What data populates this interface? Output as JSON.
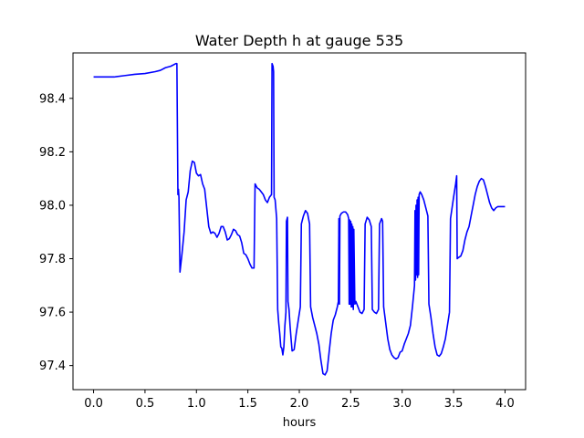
{
  "chart_data": {
    "type": "line",
    "title": "Water Depth h at gauge 535",
    "xlabel": "hours",
    "ylabel": "",
    "xlim": [
      -0.2,
      4.2
    ],
    "ylim": [
      97.31,
      98.57
    ],
    "xticks": [
      0.0,
      0.5,
      1.0,
      1.5,
      2.0,
      2.5,
      3.0,
      3.5,
      4.0
    ],
    "xtick_labels": [
      "0.0",
      "0.5",
      "1.0",
      "1.5",
      "2.0",
      "2.5",
      "3.0",
      "3.5",
      "4.0"
    ],
    "yticks": [
      97.4,
      97.6,
      97.8,
      98.0,
      98.2,
      98.4
    ],
    "ytick_labels": [
      "97.4",
      "97.6",
      "97.8",
      "98.0",
      "98.2",
      "98.4"
    ],
    "grid": false,
    "series": [
      {
        "name": "",
        "color": "#0000ff",
        "points": [
          [
            0.0,
            98.48
          ],
          [
            0.1,
            98.48
          ],
          [
            0.2,
            98.48
          ],
          [
            0.3,
            98.485
          ],
          [
            0.4,
            98.49
          ],
          [
            0.5,
            98.493
          ],
          [
            0.6,
            98.5
          ],
          [
            0.65,
            98.505
          ],
          [
            0.7,
            98.515
          ],
          [
            0.75,
            98.52
          ],
          [
            0.8,
            98.53
          ],
          [
            0.81,
            98.53
          ],
          [
            0.82,
            98.04
          ],
          [
            0.825,
            98.06
          ],
          [
            0.83,
            98.03
          ],
          [
            0.84,
            97.75
          ],
          [
            0.86,
            97.82
          ],
          [
            0.88,
            97.9
          ],
          [
            0.9,
            98.02
          ],
          [
            0.92,
            98.05
          ],
          [
            0.94,
            98.13
          ],
          [
            0.96,
            98.165
          ],
          [
            0.98,
            98.16
          ],
          [
            1.0,
            98.12
          ],
          [
            1.02,
            98.11
          ],
          [
            1.04,
            98.115
          ],
          [
            1.06,
            98.08
          ],
          [
            1.08,
            98.06
          ],
          [
            1.1,
            97.99
          ],
          [
            1.12,
            97.92
          ],
          [
            1.14,
            97.895
          ],
          [
            1.16,
            97.9
          ],
          [
            1.18,
            97.895
          ],
          [
            1.2,
            97.88
          ],
          [
            1.22,
            97.895
          ],
          [
            1.24,
            97.92
          ],
          [
            1.26,
            97.92
          ],
          [
            1.28,
            97.9
          ],
          [
            1.3,
            97.87
          ],
          [
            1.32,
            97.875
          ],
          [
            1.34,
            97.89
          ],
          [
            1.36,
            97.91
          ],
          [
            1.38,
            97.905
          ],
          [
            1.4,
            97.89
          ],
          [
            1.42,
            97.885
          ],
          [
            1.44,
            97.86
          ],
          [
            1.46,
            97.82
          ],
          [
            1.48,
            97.815
          ],
          [
            1.5,
            97.8
          ],
          [
            1.52,
            97.78
          ],
          [
            1.54,
            97.765
          ],
          [
            1.56,
            97.765
          ],
          [
            1.57,
            98.08
          ],
          [
            1.59,
            98.065
          ],
          [
            1.61,
            98.06
          ],
          [
            1.63,
            98.05
          ],
          [
            1.65,
            98.04
          ],
          [
            1.67,
            98.02
          ],
          [
            1.69,
            98.01
          ],
          [
            1.71,
            98.03
          ],
          [
            1.73,
            98.04
          ],
          [
            1.735,
            98.53
          ],
          [
            1.745,
            98.52
          ],
          [
            1.75,
            98.5
          ],
          [
            1.755,
            98.03
          ],
          [
            1.765,
            98.02
          ],
          [
            1.78,
            97.95
          ],
          [
            1.79,
            97.61
          ],
          [
            1.8,
            97.56
          ],
          [
            1.81,
            97.52
          ],
          [
            1.82,
            97.47
          ],
          [
            1.83,
            97.465
          ],
          [
            1.84,
            97.44
          ],
          [
            1.85,
            97.47
          ],
          [
            1.86,
            97.55
          ],
          [
            1.87,
            97.6
          ],
          [
            1.875,
            97.94
          ],
          [
            1.885,
            97.955
          ],
          [
            1.89,
            97.64
          ],
          [
            1.9,
            97.61
          ],
          [
            1.91,
            97.55
          ],
          [
            1.92,
            97.5
          ],
          [
            1.93,
            97.455
          ],
          [
            1.95,
            97.46
          ],
          [
            1.97,
            97.52
          ],
          [
            1.99,
            97.57
          ],
          [
            2.01,
            97.62
          ],
          [
            2.02,
            97.93
          ],
          [
            2.04,
            97.96
          ],
          [
            2.06,
            97.98
          ],
          [
            2.08,
            97.97
          ],
          [
            2.1,
            97.93
          ],
          [
            2.11,
            97.62
          ],
          [
            2.13,
            97.58
          ],
          [
            2.15,
            97.55
          ],
          [
            2.17,
            97.52
          ],
          [
            2.19,
            97.48
          ],
          [
            2.21,
            97.42
          ],
          [
            2.23,
            97.37
          ],
          [
            2.25,
            97.365
          ],
          [
            2.27,
            97.38
          ],
          [
            2.29,
            97.45
          ],
          [
            2.31,
            97.52
          ],
          [
            2.33,
            97.57
          ],
          [
            2.35,
            97.59
          ],
          [
            2.37,
            97.62
          ],
          [
            2.38,
            97.64
          ],
          [
            2.385,
            97.95
          ],
          [
            2.39,
            97.63
          ],
          [
            2.395,
            97.96
          ],
          [
            2.41,
            97.97
          ],
          [
            2.43,
            97.975
          ],
          [
            2.45,
            97.975
          ],
          [
            2.47,
            97.965
          ],
          [
            2.48,
            97.95
          ],
          [
            2.485,
            97.63
          ],
          [
            2.49,
            97.945
          ],
          [
            2.495,
            97.63
          ],
          [
            2.5,
            97.94
          ],
          [
            2.505,
            97.62
          ],
          [
            2.51,
            97.93
          ],
          [
            2.515,
            97.62
          ],
          [
            2.52,
            97.92
          ],
          [
            2.525,
            97.61
          ],
          [
            2.53,
            97.91
          ],
          [
            2.54,
            97.63
          ],
          [
            2.55,
            97.64
          ],
          [
            2.57,
            97.62
          ],
          [
            2.59,
            97.6
          ],
          [
            2.61,
            97.595
          ],
          [
            2.63,
            97.61
          ],
          [
            2.64,
            97.93
          ],
          [
            2.66,
            97.955
          ],
          [
            2.68,
            97.945
          ],
          [
            2.7,
            97.92
          ],
          [
            2.71,
            97.61
          ],
          [
            2.73,
            97.6
          ],
          [
            2.75,
            97.595
          ],
          [
            2.77,
            97.61
          ],
          [
            2.78,
            97.93
          ],
          [
            2.8,
            97.95
          ],
          [
            2.81,
            97.94
          ],
          [
            2.82,
            97.62
          ],
          [
            2.84,
            97.56
          ],
          [
            2.86,
            97.5
          ],
          [
            2.88,
            97.46
          ],
          [
            2.9,
            97.44
          ],
          [
            2.92,
            97.43
          ],
          [
            2.94,
            97.425
          ],
          [
            2.96,
            97.43
          ],
          [
            2.98,
            97.45
          ],
          [
            3.0,
            97.455
          ],
          [
            3.02,
            97.48
          ],
          [
            3.04,
            97.5
          ],
          [
            3.06,
            97.52
          ],
          [
            3.08,
            97.55
          ],
          [
            3.1,
            97.62
          ],
          [
            3.12,
            97.7
          ],
          [
            3.125,
            97.98
          ],
          [
            3.13,
            97.72
          ],
          [
            3.135,
            98.0
          ],
          [
            3.14,
            97.74
          ],
          [
            3.145,
            98.02
          ],
          [
            3.15,
            97.73
          ],
          [
            3.155,
            98.03
          ],
          [
            3.16,
            97.74
          ],
          [
            3.165,
            98.04
          ],
          [
            3.175,
            98.05
          ],
          [
            3.19,
            98.04
          ],
          [
            3.21,
            98.02
          ],
          [
            3.23,
            97.99
          ],
          [
            3.25,
            97.96
          ],
          [
            3.26,
            97.63
          ],
          [
            3.28,
            97.58
          ],
          [
            3.3,
            97.52
          ],
          [
            3.32,
            97.47
          ],
          [
            3.34,
            97.44
          ],
          [
            3.36,
            97.435
          ],
          [
            3.38,
            97.445
          ],
          [
            3.4,
            97.47
          ],
          [
            3.42,
            97.5
          ],
          [
            3.44,
            97.55
          ],
          [
            3.46,
            97.6
          ],
          [
            3.47,
            97.95
          ],
          [
            3.5,
            98.03
          ],
          [
            3.52,
            98.08
          ],
          [
            3.53,
            98.11
          ],
          [
            3.535,
            97.8
          ],
          [
            3.55,
            97.805
          ],
          [
            3.57,
            97.81
          ],
          [
            3.59,
            97.83
          ],
          [
            3.61,
            97.87
          ],
          [
            3.63,
            97.9
          ],
          [
            3.65,
            97.92
          ],
          [
            3.67,
            97.96
          ],
          [
            3.69,
            98.0
          ],
          [
            3.71,
            98.04
          ],
          [
            3.73,
            98.07
          ],
          [
            3.75,
            98.09
          ],
          [
            3.77,
            98.1
          ],
          [
            3.79,
            98.095
          ],
          [
            3.81,
            98.07
          ],
          [
            3.83,
            98.04
          ],
          [
            3.85,
            98.01
          ],
          [
            3.87,
            97.99
          ],
          [
            3.89,
            97.98
          ],
          [
            3.91,
            97.99
          ],
          [
            3.93,
            97.995
          ],
          [
            3.96,
            97.995
          ],
          [
            3.98,
            97.995
          ],
          [
            4.0,
            97.995
          ]
        ]
      }
    ]
  }
}
